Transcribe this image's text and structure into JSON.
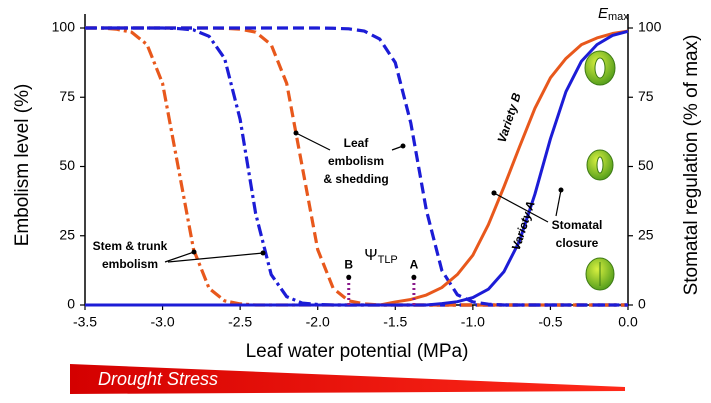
{
  "chart_data": {
    "type": "line",
    "xlabel": "Leaf water potential (MPa)",
    "ylabel": "Embolism level (%)",
    "y2label": "Stomatal regulation (% of max)",
    "x": [
      -3.5,
      -3.4,
      -3.3,
      -3.2,
      -3.1,
      -3.0,
      -2.9,
      -2.8,
      -2.7,
      -2.6,
      -2.5,
      -2.4,
      -2.3,
      -2.2,
      -2.1,
      -2.0,
      -1.9,
      -1.8,
      -1.7,
      -1.6,
      -1.5,
      -1.4,
      -1.3,
      -1.2,
      -1.1,
      -1.0,
      -0.9,
      -0.8,
      -0.7,
      -0.6,
      -0.5,
      -0.4,
      -0.3,
      -0.2,
      -0.1,
      0.0
    ],
    "xlim": [
      -3.5,
      0
    ],
    "xticks": [
      -3.5,
      {
        "value": -3,
        "label": "-3.0"
      },
      -2.5,
      {
        "value": -2,
        "label": "-2.0"
      },
      -1.5,
      {
        "value": -1,
        "label": "-1.0"
      },
      -0.5,
      {
        "value": 0,
        "label": "0.0"
      }
    ],
    "ylim": [
      0,
      100
    ],
    "yticks": [
      0,
      25,
      50,
      75,
      100
    ],
    "y2lim": [
      0,
      100
    ],
    "y2ticks": [
      0,
      25,
      50,
      75,
      100
    ],
    "series": [
      {
        "color": "#e8581c",
        "dash": "dashdot",
        "values": [
          100,
          100,
          99.6,
          98.5,
          94,
          80,
          50,
          20,
          6,
          1.5,
          0.4,
          0,
          0,
          0,
          0,
          0,
          0,
          0,
          0,
          0,
          0,
          0,
          0,
          0,
          0,
          0,
          0,
          0,
          0,
          0,
          0,
          0,
          0,
          0,
          0,
          0
        ]
      },
      {
        "color": "#1c1cd6",
        "dash": "dashdot",
        "values": [
          100,
          100,
          100,
          100,
          100,
          100,
          99.8,
          99.3,
          97,
          89,
          67,
          33,
          11,
          3,
          0.7,
          0.2,
          0,
          0,
          0,
          0,
          0,
          0,
          0,
          0,
          0,
          0,
          0,
          0,
          0,
          0,
          0,
          0,
          0,
          0,
          0,
          0
        ]
      },
      {
        "color": "#e8581c",
        "dash": "dashed",
        "values": [
          100,
          100,
          100,
          100,
          100,
          100,
          100,
          100,
          100,
          99.9,
          99.6,
          98.5,
          94,
          80,
          50,
          20,
          6,
          1.5,
          0.4,
          0,
          0,
          0,
          0,
          0,
          0,
          0,
          0,
          0,
          0,
          0,
          0,
          0,
          0,
          0,
          0,
          0
        ]
      },
      {
        "color": "#1c1cd6",
        "dash": "dashed",
        "values": [
          100,
          100,
          100,
          100,
          100,
          100,
          100,
          100,
          100,
          100,
          100,
          100,
          100,
          100,
          100,
          100,
          99.9,
          99.7,
          98.9,
          96,
          87.5,
          65.7,
          34.3,
          12.5,
          3.7,
          1.1,
          0.3,
          0,
          0,
          0,
          0,
          0,
          0,
          0,
          0,
          0
        ]
      },
      {
        "color": "#e8581c",
        "dash": "solid",
        "axis": "y2",
        "values": [
          0,
          0,
          0,
          0,
          0,
          0,
          0,
          0,
          0,
          0,
          0,
          0,
          0,
          0,
          0,
          0,
          0,
          0,
          0,
          0,
          1.1,
          2,
          3.6,
          6.3,
          11,
          18,
          29,
          42.6,
          57,
          71,
          82,
          89,
          94,
          96.4,
          98,
          98.9
        ]
      },
      {
        "color": "#1c1cd6",
        "dash": "solid",
        "axis": "y2",
        "values": [
          0,
          0,
          0,
          0,
          0,
          0,
          0,
          0,
          0,
          0,
          0,
          0,
          0,
          0,
          0,
          0,
          0,
          0,
          0,
          0,
          0,
          0,
          0,
          0.5,
          1.2,
          2.7,
          5.7,
          12,
          23,
          40,
          60,
          77,
          88,
          94,
          97.3,
          98.8
        ]
      }
    ],
    "annotations": [
      {
        "lines": [
          "Stem & trunk",
          "embolism"
        ]
      },
      {
        "lines": [
          "Leaf",
          "embolism",
          "& shedding"
        ]
      },
      {
        "lines": [
          "Variety B"
        ]
      },
      {
        "lines": [
          "Variety A"
        ]
      },
      {
        "lines": [
          "Stomatal",
          "closure"
        ]
      }
    ],
    "emax": {
      "symbol": "E",
      "sub": "max"
    },
    "tlp": {
      "symbol": "Ψ",
      "sub": "TLP",
      "color": "#8b1a8b",
      "markers": [
        {
          "label": "B",
          "x": -1.8,
          "y": 10
        },
        {
          "label": "A",
          "x": -1.38,
          "y": 10
        }
      ]
    },
    "banner": "Drought Stress"
  }
}
